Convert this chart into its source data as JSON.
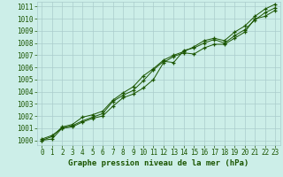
{
  "title": "",
  "xlabel": "Graphe pression niveau de la mer (hPa)",
  "bg_color": "#cceee8",
  "grid_color": "#aacccc",
  "line_color": "#1a5500",
  "marker_color": "#1a5500",
  "xlim": [
    -0.5,
    23.5
  ],
  "ylim": [
    999.6,
    1011.4
  ],
  "yticks": [
    1000,
    1001,
    1002,
    1003,
    1004,
    1005,
    1006,
    1007,
    1008,
    1009,
    1010,
    1011
  ],
  "xticks": [
    0,
    1,
    2,
    3,
    4,
    5,
    6,
    7,
    8,
    9,
    10,
    11,
    12,
    13,
    14,
    15,
    16,
    17,
    18,
    19,
    20,
    21,
    22,
    23
  ],
  "line1": [
    1000.0,
    1000.1,
    1001.0,
    1001.1,
    1001.5,
    1001.8,
    1002.0,
    1002.8,
    1003.5,
    1003.8,
    1004.3,
    1005.0,
    1006.4,
    1006.9,
    1007.2,
    1007.1,
    1007.6,
    1007.9,
    1007.9,
    1008.4,
    1008.9,
    1010.0,
    1010.2,
    1010.7
  ],
  "line2": [
    1000.1,
    1000.4,
    1001.0,
    1001.2,
    1001.6,
    1001.9,
    1002.2,
    1003.2,
    1003.7,
    1004.1,
    1004.9,
    1005.8,
    1006.5,
    1006.4,
    1007.4,
    1007.6,
    1008.0,
    1008.3,
    1008.0,
    1008.6,
    1009.1,
    1009.9,
    1010.5,
    1010.9
  ],
  "line3": [
    1000.0,
    1000.3,
    1001.1,
    1001.3,
    1001.9,
    1002.1,
    1002.4,
    1003.3,
    1003.9,
    1004.4,
    1005.3,
    1005.9,
    1006.6,
    1007.0,
    1007.3,
    1007.7,
    1008.2,
    1008.4,
    1008.2,
    1008.9,
    1009.4,
    1010.2,
    1010.8,
    1011.2
  ],
  "tick_fontsize": 5.5,
  "xlabel_fontsize": 6.5,
  "tick_color": "#1a5500",
  "xlabel_color": "#1a5500"
}
